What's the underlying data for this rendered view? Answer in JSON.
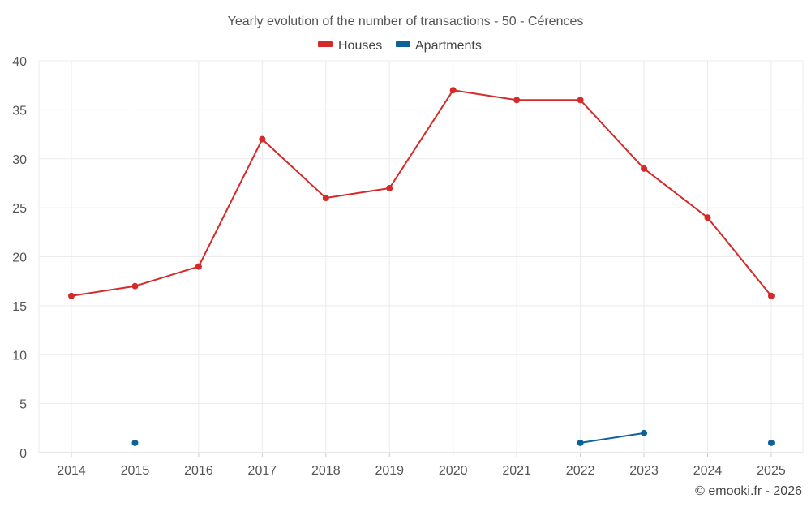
{
  "chart_data": {
    "type": "line",
    "title": "Yearly evolution of the number of transactions - 50 - Cérences",
    "categories": [
      "2014",
      "2015",
      "2016",
      "2017",
      "2018",
      "2019",
      "2020",
      "2021",
      "2022",
      "2023",
      "2024",
      "2025"
    ],
    "ylim": [
      0,
      40
    ],
    "yticks": [
      0,
      5,
      10,
      15,
      20,
      25,
      30,
      35,
      40
    ],
    "grid": true,
    "legend_position": "top-center",
    "series": [
      {
        "name": "Houses",
        "color": "#d42a2a",
        "values": [
          16,
          17,
          19,
          32,
          26,
          27,
          37,
          36,
          36,
          29,
          24,
          16
        ]
      },
      {
        "name": "Apartments",
        "color": "#0d6199",
        "values": [
          null,
          1,
          null,
          null,
          null,
          null,
          null,
          null,
          1,
          2,
          null,
          1
        ]
      }
    ]
  },
  "credit": "© emooki.fr - 2026"
}
